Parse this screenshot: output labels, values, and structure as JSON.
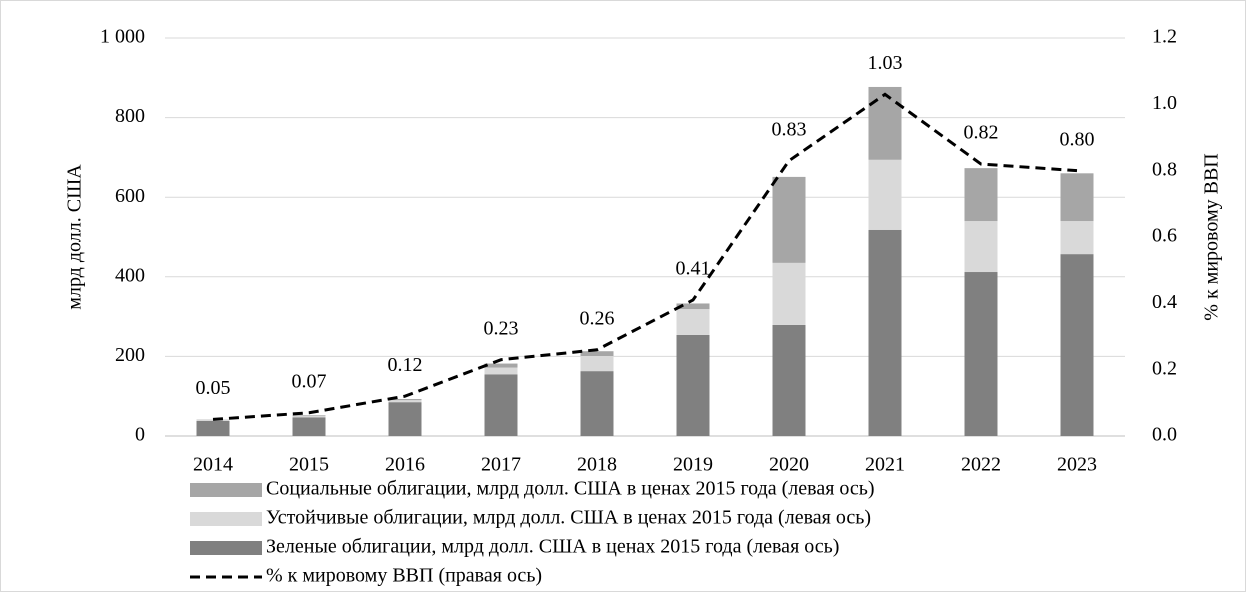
{
  "chart_data": {
    "type": "bar",
    "stacked": true,
    "y_label": "млрд долл. США",
    "y2_label": "% к мировому ВВП",
    "categories": [
      "2014",
      "2015",
      "2016",
      "2017",
      "2018",
      "2019",
      "2020",
      "2021",
      "2022",
      "2023"
    ],
    "series": [
      {
        "name": "Социальные облигации, млрд долл. США в ценах 2015 года (левая ось)",
        "type": "bar",
        "color": "#a6a6a6",
        "values": [
          1,
          2,
          3,
          10,
          12,
          14,
          216,
          183,
          133,
          120
        ]
      },
      {
        "name": "Устойчивые облигации, млрд долл. США в ценах 2015 года (левая ось)",
        "type": "bar",
        "color": "#d9d9d9",
        "values": [
          2,
          3,
          5,
          17,
          38,
          65,
          156,
          176,
          128,
          83
        ]
      },
      {
        "name": "Зеленые облигации, млрд долл. США в ценах 2015 года (левая ось)",
        "type": "bar",
        "color": "#808080",
        "values": [
          38,
          47,
          85,
          155,
          163,
          254,
          279,
          518,
          412,
          457
        ]
      },
      {
        "name": "% к мировому ВВП (правая ось)",
        "type": "line",
        "axis": "y2",
        "color": "#000000",
        "dashed": true,
        "values": [
          0.05,
          0.07,
          0.12,
          0.23,
          0.26,
          0.41,
          0.83,
          1.03,
          0.82,
          0.8
        ],
        "value_labels": [
          "0.05",
          "0.07",
          "0.12",
          "0.23",
          "0.26",
          "0.41",
          "0.83",
          "1.03",
          "0.82",
          "0.80"
        ]
      }
    ],
    "ylim": [
      0,
      1000
    ],
    "yticks": [
      0,
      200,
      400,
      600,
      800,
      {
        "value": 1000,
        "label": "1 000"
      }
    ],
    "y2lim": [
      0,
      1.2
    ],
    "y2ticks": [
      {
        "value": 0,
        "label": "0.0"
      },
      0.2,
      0.4,
      0.6,
      0.8,
      {
        "value": 1,
        "label": "1.0"
      },
      1.2
    ],
    "grid": true,
    "legend": "bottom"
  }
}
